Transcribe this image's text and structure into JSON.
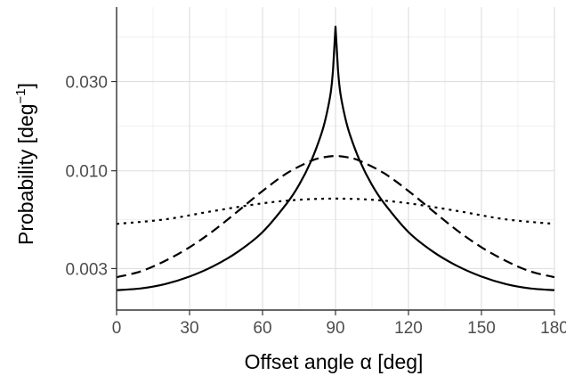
{
  "chart_data": {
    "type": "line",
    "title": "",
    "xlabel": "Offset angle α [deg]",
    "ylabel": {
      "text": "Probability [deg",
      "superscript": "−1",
      "suffix": "]"
    },
    "y_scale": "log",
    "xlim": [
      0,
      180
    ],
    "ylim": [
      0.0018,
      0.075
    ],
    "x_ticks": [
      0,
      30,
      60,
      90,
      120,
      150,
      180
    ],
    "x_tick_labels": [
      "0",
      "30",
      "60",
      "90",
      "120",
      "150",
      "180"
    ],
    "y_ticks": [
      0.003,
      0.01,
      0.03
    ],
    "y_tick_labels": [
      "0.003",
      "0.010",
      "0.030"
    ],
    "grid": true,
    "legend": "none",
    "series": [
      {
        "line_style": "solid",
        "color": "#000000",
        "x": [
          0,
          10,
          20,
          30,
          40,
          50,
          60,
          70,
          75,
          80,
          84,
          86,
          88,
          89,
          90,
          91,
          92,
          94,
          96,
          100,
          105,
          110,
          120,
          130,
          140,
          150,
          160,
          170,
          180
        ],
        "y": [
          0.0023,
          0.00235,
          0.00248,
          0.00272,
          0.0031,
          0.0037,
          0.0047,
          0.0067,
          0.0084,
          0.0113,
          0.0155,
          0.0192,
          0.026,
          0.035,
          0.059,
          0.035,
          0.026,
          0.0192,
          0.0155,
          0.0113,
          0.0084,
          0.0067,
          0.0047,
          0.0037,
          0.0031,
          0.00272,
          0.00248,
          0.00235,
          0.0023
        ]
      },
      {
        "line_style": "dashed",
        "color": "#000000",
        "x": [
          0,
          10,
          20,
          30,
          40,
          50,
          60,
          70,
          80,
          85,
          90,
          95,
          100,
          110,
          120,
          130,
          140,
          150,
          160,
          170,
          180
        ],
        "y": [
          0.0027,
          0.0029,
          0.0033,
          0.0039,
          0.0048,
          0.0061,
          0.0078,
          0.0097,
          0.0113,
          0.0118,
          0.012,
          0.0118,
          0.0113,
          0.0097,
          0.0078,
          0.0061,
          0.0048,
          0.0039,
          0.0033,
          0.0029,
          0.0027
        ]
      },
      {
        "line_style": "dotted",
        "color": "#000000",
        "x": [
          0,
          20,
          40,
          60,
          75,
          90,
          105,
          120,
          140,
          160,
          180
        ],
        "y": [
          0.0052,
          0.0055,
          0.0061,
          0.0067,
          0.007,
          0.0071,
          0.007,
          0.0067,
          0.0061,
          0.0055,
          0.0052
        ]
      }
    ]
  }
}
